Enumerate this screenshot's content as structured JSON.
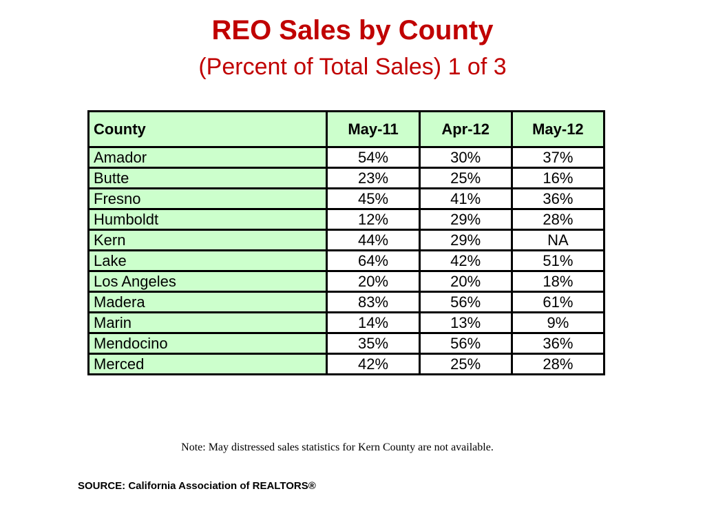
{
  "title": "REO Sales by County",
  "subtitle": "(Percent of Total Sales) 1 of 3",
  "colors": {
    "title": "#c00000",
    "county_cell_bg": "#ccffcc",
    "border": "#000000"
  },
  "table": {
    "headers": [
      "County",
      "May-11",
      "Apr-12",
      "May-12"
    ],
    "rows": [
      {
        "county": "Amador",
        "may11": "54%",
        "apr12": "30%",
        "may12": "37%"
      },
      {
        "county": "Butte",
        "may11": "23%",
        "apr12": "25%",
        "may12": "16%"
      },
      {
        "county": "Fresno",
        "may11": "45%",
        "apr12": "41%",
        "may12": "36%"
      },
      {
        "county": "Humboldt",
        "may11": "12%",
        "apr12": "29%",
        "may12": "28%"
      },
      {
        "county": "Kern",
        "may11": "44%",
        "apr12": "29%",
        "may12": "NA"
      },
      {
        "county": "Lake",
        "may11": "64%",
        "apr12": "42%",
        "may12": "51%"
      },
      {
        "county": "Los Angeles",
        "may11": "20%",
        "apr12": "20%",
        "may12": "18%"
      },
      {
        "county": "Madera",
        "may11": "83%",
        "apr12": "56%",
        "may12": "61%"
      },
      {
        "county": "Marin",
        "may11": "14%",
        "apr12": "13%",
        "may12": "9%"
      },
      {
        "county": "Mendocino",
        "may11": "35%",
        "apr12": "56%",
        "may12": "36%"
      },
      {
        "county": "Merced",
        "may11": "42%",
        "apr12": "25%",
        "may12": "28%"
      }
    ]
  },
  "note": "Note: May distressed sales statistics for Kern County are not available.",
  "source": "SOURCE: California Association of REALTORS®"
}
